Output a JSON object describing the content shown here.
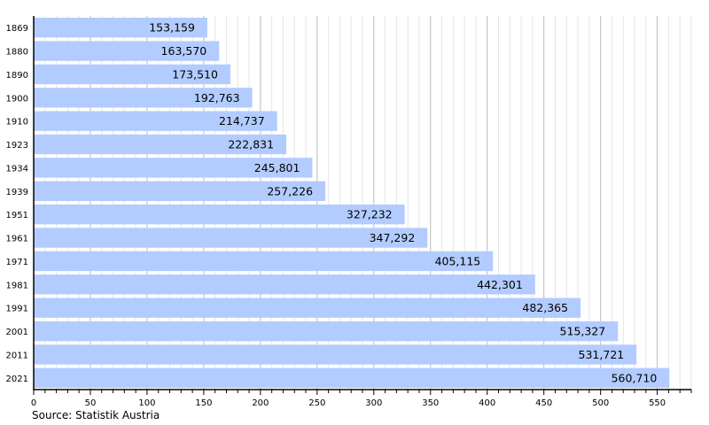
{
  "chart_data": {
    "type": "bar",
    "orientation": "horizontal",
    "categories": [
      "1869",
      "1880",
      "1890",
      "1900",
      "1910",
      "1923",
      "1934",
      "1939",
      "1951",
      "1961",
      "1971",
      "1981",
      "1991",
      "2001",
      "2011",
      "2021"
    ],
    "values": [
      153159,
      163570,
      173510,
      192763,
      214737,
      222831,
      245801,
      257226,
      327232,
      347292,
      405115,
      442301,
      482365,
      515327,
      531721,
      560710
    ],
    "data_labels": [
      "153,159",
      "163,570",
      "173,510",
      "192,763",
      "214,737",
      "222,831",
      "245,801",
      "257,226",
      "327,232",
      "347,292",
      "405,115",
      "442,301",
      "482,365",
      "515,327",
      "531,721",
      "560,710"
    ],
    "xlim": [
      0,
      580
    ],
    "x_unit_scale": 1000,
    "x_ticks": [
      "0",
      "50",
      "100",
      "150",
      "200",
      "250",
      "300",
      "350",
      "400",
      "450",
      "500",
      "550"
    ],
    "grid": true,
    "bar_color": "#b3ccff",
    "source": "Source: Statistik Austria"
  }
}
